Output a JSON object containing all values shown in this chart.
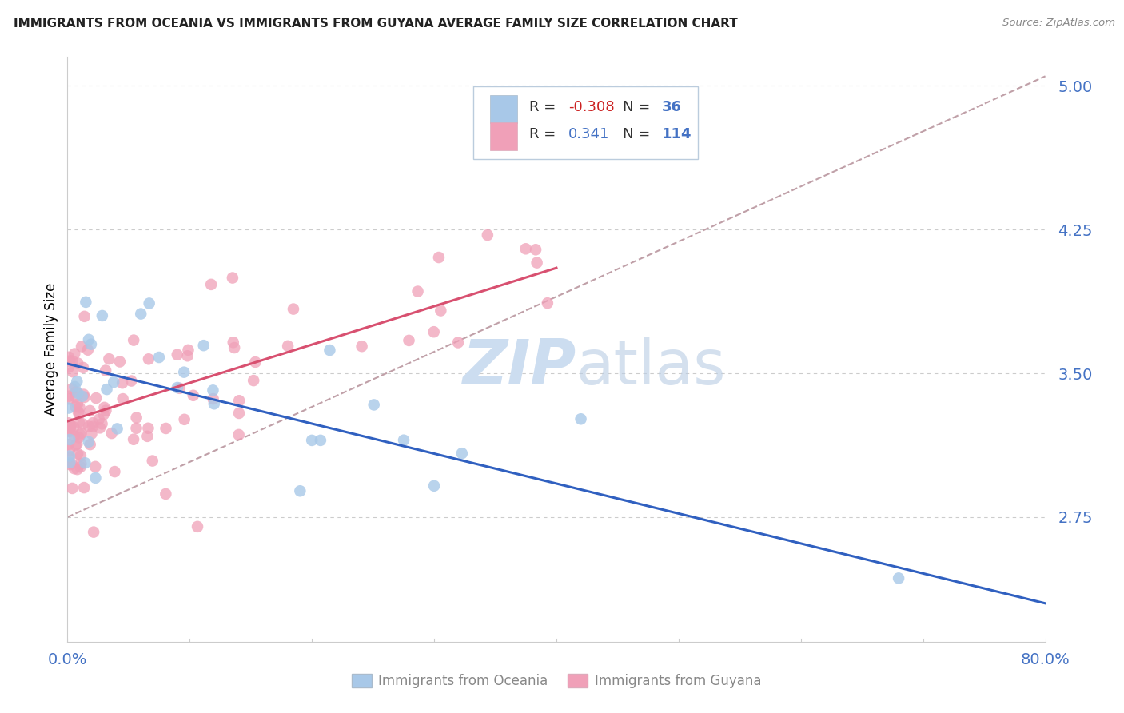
{
  "title": "IMMIGRANTS FROM OCEANIA VS IMMIGRANTS FROM GUYANA AVERAGE FAMILY SIZE CORRELATION CHART",
  "source": "Source: ZipAtlas.com",
  "ylabel": "Average Family Size",
  "xlim": [
    0.0,
    0.8
  ],
  "ylim": [
    2.1,
    5.15
  ],
  "yticks": [
    2.75,
    3.5,
    4.25,
    5.0
  ],
  "ytick_labels": [
    "2.75",
    "3.50",
    "4.25",
    "5.00"
  ],
  "xtick_left": "0.0%",
  "xtick_right": "80.0%",
  "color_oceania_scatter": "#a8c8e8",
  "color_guyana_scatter": "#f0a0b8",
  "color_blue_line": "#3060c0",
  "color_pink_line": "#d85070",
  "color_axis_text": "#4472c4",
  "color_title": "#222222",
  "color_grid": "#cccccc",
  "color_dashed": "#c0a0a8",
  "watermark_color": "#ccddf0",
  "background_color": "#ffffff",
  "legend_box_color": "#f0f4ff",
  "legend_border_color": "#bbccdd",
  "legend_text_color_r": "#cc0000",
  "legend_text_color_n": "#4472c4",
  "legend_label_color": "#333333",
  "bottom_legend_text_color": "#888888",
  "oceania_line_x0": 0.0,
  "oceania_line_y0": 3.55,
  "oceania_line_x1": 0.8,
  "oceania_line_y1": 2.3,
  "guyana_line_x0": 0.0,
  "guyana_line_y0": 3.25,
  "guyana_line_x1": 0.4,
  "guyana_line_y1": 4.05,
  "dashed_line_x0": 0.0,
  "dashed_line_y0": 2.75,
  "dashed_line_x1": 0.8,
  "dashed_line_y1": 5.05
}
